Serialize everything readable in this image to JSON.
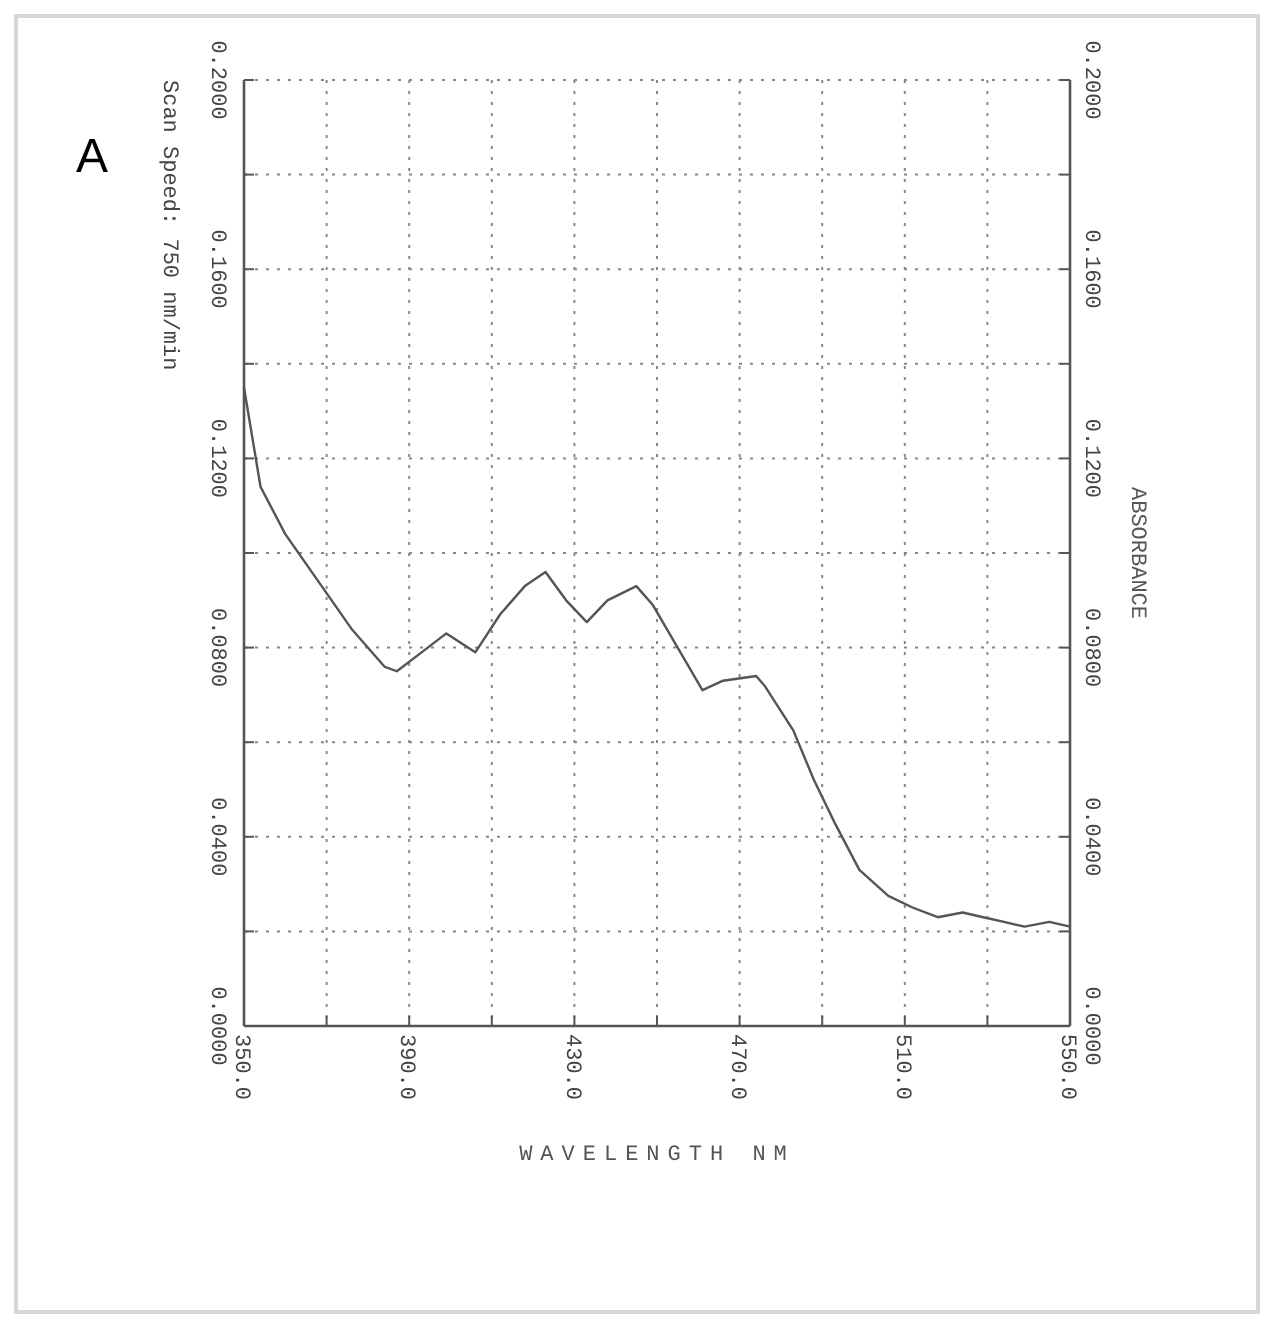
{
  "chart_data": {
    "type": "line",
    "xlabel": "WAVELENGTH NM",
    "y2label": "ABSORBANCE",
    "annotations": [
      "A",
      "Scan Speed: 750 nm/min"
    ],
    "x": [
      350,
      354,
      360,
      368,
      376,
      384,
      387,
      393,
      399,
      406,
      412,
      418,
      423,
      428,
      433,
      438,
      445,
      449,
      455,
      461,
      466,
      474,
      476,
      483,
      488,
      493,
      499,
      506,
      512,
      518,
      524,
      529,
      534,
      539,
      545,
      550
    ],
    "series": [
      {
        "color": "#555555",
        "values": [
          0.135,
          0.114,
          0.104,
          0.094,
          0.084,
          0.076,
          0.075,
          0.079,
          0.083,
          0.079,
          0.087,
          0.093,
          0.096,
          0.09,
          0.0854,
          0.09,
          0.093,
          0.089,
          0.08,
          0.071,
          0.073,
          0.074,
          0.072,
          0.0625,
          0.052,
          0.043,
          0.033,
          0.0275,
          0.025,
          0.023,
          0.024,
          0.023,
          0.022,
          0.021,
          0.022,
          0.021
        ]
      }
    ],
    "xlim": [
      350,
      550
    ],
    "xticks": [
      {
        "value": 350,
        "label": "350.0"
      },
      {
        "value": 370,
        "label": null
      },
      {
        "value": 390,
        "label": "390.0"
      },
      {
        "value": 410,
        "label": null
      },
      {
        "value": 430,
        "label": "430.0"
      },
      {
        "value": 450,
        "label": null
      },
      {
        "value": 470,
        "label": "470.0"
      },
      {
        "value": 490,
        "label": null
      },
      {
        "value": 510,
        "label": "510.0"
      },
      {
        "value": 530,
        "label": null
      },
      {
        "value": 550,
        "label": "550.0"
      }
    ],
    "ylim": [
      0,
      0.2
    ],
    "yticks": [
      {
        "value": 0,
        "label": "0.0000"
      },
      {
        "value": 0.02,
        "label": null
      },
      {
        "value": 0.04,
        "label": "0.0400"
      },
      {
        "value": 0.06,
        "label": null
      },
      {
        "value": 0.08,
        "label": "0.0800"
      },
      {
        "value": 0.1,
        "label": null
      },
      {
        "value": 0.12,
        "label": "0.1200"
      },
      {
        "value": 0.14,
        "label": null
      },
      {
        "value": 0.16,
        "label": "0.1600"
      },
      {
        "value": 0.18,
        "label": null
      },
      {
        "value": 0.2,
        "label": "0.2000"
      }
    ],
    "y2lim": [
      0,
      0.2
    ],
    "y2ticks": [
      {
        "value": 0,
        "label": "0.0000"
      },
      {
        "value": 0.02,
        "label": null
      },
      {
        "value": 0.04,
        "label": "0.0400"
      },
      {
        "value": 0.06,
        "label": null
      },
      {
        "value": 0.08,
        "label": "0.0800"
      },
      {
        "value": 0.1,
        "label": null
      },
      {
        "value": 0.12,
        "label": "0.1200"
      },
      {
        "value": 0.14,
        "label": null
      },
      {
        "value": 0.16,
        "label": "0.1600"
      },
      {
        "value": 0.18,
        "label": null
      },
      {
        "value": 0.2,
        "label": "0.2000"
      }
    ],
    "grid": true,
    "line_style": "solid"
  }
}
